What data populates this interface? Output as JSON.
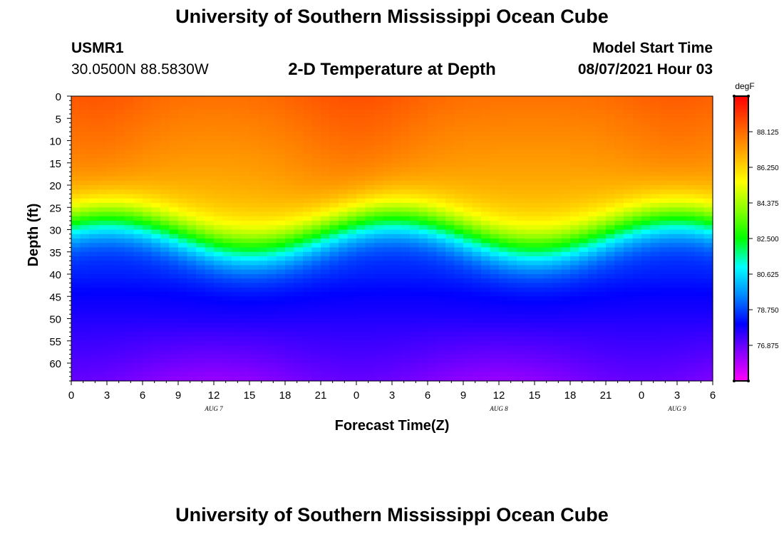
{
  "title_top": "University of Southern Mississippi Ocean Cube",
  "title_bottom": "University of Southern Mississippi Ocean Cube",
  "station": {
    "id": "USMR1",
    "coords": "30.0500N  88.5830W"
  },
  "model": {
    "label": "Model Start Time",
    "time": "08/07/2021 Hour 03"
  },
  "chart_data": {
    "type": "heatmap",
    "title": "2-D Temperature at Depth",
    "xlabel": "Forecast Time(Z)",
    "ylabel": "Depth (ft)",
    "units": "degF",
    "x_tick_labels": [
      "0",
      "3",
      "6",
      "9",
      "12",
      "15",
      "18",
      "21",
      "0",
      "3",
      "6",
      "9",
      "12",
      "15",
      "18",
      "21",
      "0",
      "3",
      "6"
    ],
    "date_labels": [
      {
        "label": "AUG 7",
        "hour": 12
      },
      {
        "label": "AUG 8",
        "hour": 36
      },
      {
        "label": "AUG 9",
        "hour": 51
      }
    ],
    "x_range_hours": [
      0,
      54
    ],
    "y_ticks": [
      0,
      5,
      10,
      15,
      20,
      25,
      30,
      35,
      40,
      45,
      50,
      55,
      60
    ],
    "y_range": [
      0,
      64
    ],
    "colorbar_ticks": [
      "88.125",
      "86.250",
      "84.375",
      "82.500",
      "80.625",
      "78.750",
      "76.875"
    ],
    "color_range": [
      75.0,
      90.0
    ],
    "palette": [
      "#ff00ff",
      "#8800ff",
      "#0000ff",
      "#0088ff",
      "#00ffff",
      "#00ff00",
      "#88ff00",
      "#ffff00",
      "#ffaa00",
      "#ff5500",
      "#ff0000"
    ],
    "grid": false
  }
}
